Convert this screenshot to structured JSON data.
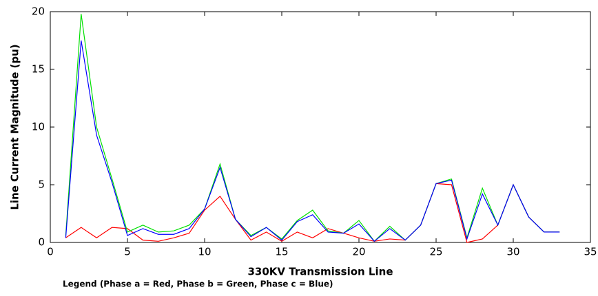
{
  "chart_data": {
    "type": "line",
    "xlabel": "330KV Transmission Line",
    "ylabel": "Line Current Magnitude (pu)",
    "note": "Legend (Phase a = Red, Phase b = Green, Phase c = Blue)",
    "x": [
      1,
      2,
      3,
      4,
      5,
      6,
      7,
      8,
      9,
      10,
      11,
      12,
      13,
      14,
      15,
      16,
      17,
      18,
      19,
      20,
      21,
      22,
      23,
      24,
      25,
      26,
      27,
      28,
      29,
      30,
      31,
      32,
      33
    ],
    "series": [
      {
        "color": "#ff0000",
        "values": [
          0.4,
          1.3,
          0.4,
          1.3,
          1.2,
          0.2,
          0.1,
          0.4,
          0.8,
          2.8,
          4.0,
          2.0,
          0.2,
          0.9,
          0.1,
          0.9,
          0.4,
          1.2,
          0.8,
          0.4,
          0.1,
          0.3,
          0.2,
          1.5,
          5.1,
          5.0,
          0.0,
          0.3,
          1.5,
          5.0,
          2.2,
          0.9,
          0.9
        ]
      },
      {
        "color": "#00e000",
        "values": [
          0.6,
          19.8,
          10.0,
          5.5,
          0.9,
          1.5,
          0.9,
          1.0,
          1.5,
          2.9,
          6.8,
          2.0,
          0.6,
          1.3,
          0.3,
          1.9,
          2.8,
          1.0,
          0.8,
          1.9,
          0.1,
          1.4,
          0.2,
          1.5,
          5.1,
          5.5,
          0.4,
          4.7,
          1.5,
          5.0,
          2.2,
          0.9,
          0.9
        ]
      },
      {
        "color": "#0000ff",
        "values": [
          0.4,
          17.5,
          9.3,
          5.2,
          0.6,
          1.2,
          0.7,
          0.7,
          1.2,
          2.9,
          6.5,
          2.0,
          0.5,
          1.3,
          0.2,
          1.8,
          2.4,
          0.9,
          0.8,
          1.6,
          0.1,
          1.2,
          0.2,
          1.5,
          5.1,
          5.4,
          0.3,
          4.2,
          1.5,
          5.0,
          2.2,
          0.9,
          0.9
        ]
      }
    ],
    "xlim": [
      0,
      35
    ],
    "xticks": [
      0,
      5,
      10,
      15,
      20,
      25,
      30,
      35
    ],
    "ylim": [
      0,
      20
    ],
    "yticks": [
      0,
      5,
      10,
      15,
      20
    ]
  }
}
